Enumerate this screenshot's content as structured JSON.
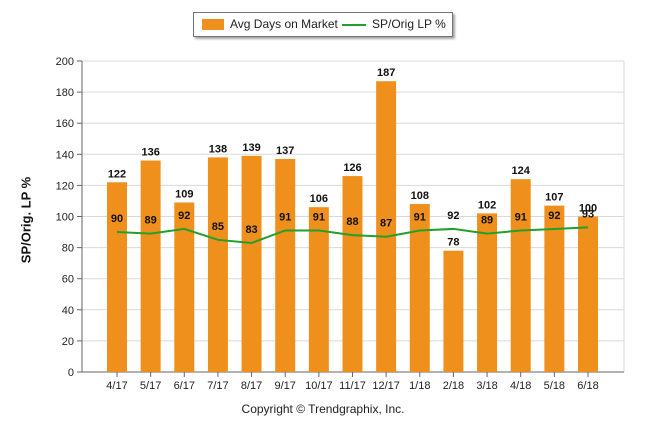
{
  "legend": {
    "bar_label": "Avg Days on Market",
    "line_label": "SP/Orig LP %"
  },
  "footer": "Copyright © Trendgraphix, Inc.",
  "colors": {
    "bar": "#f0901c",
    "line": "#22a02a",
    "grid": "#d9d9d9",
    "axis": "#666666"
  },
  "chart_data": {
    "type": "bar",
    "title": "",
    "xlabel": "",
    "ylabel": "SP/Orig. LP %",
    "ylim": [
      0,
      200
    ],
    "yticks": [
      0,
      20,
      40,
      60,
      80,
      100,
      120,
      140,
      160,
      180,
      200
    ],
    "grid": true,
    "legend_position": "top-center",
    "categories": [
      "4/17",
      "5/17",
      "6/17",
      "7/17",
      "8/17",
      "9/17",
      "10/17",
      "11/17",
      "12/17",
      "1/18",
      "2/18",
      "3/18",
      "4/18",
      "5/18",
      "6/18"
    ],
    "series": [
      {
        "name": "Avg Days on Market",
        "type": "bar",
        "values": [
          122,
          136,
          109,
          138,
          139,
          137,
          106,
          126,
          187,
          108,
          78,
          102,
          124,
          107,
          100
        ]
      },
      {
        "name": "SP/Orig LP %",
        "type": "line",
        "values": [
          90,
          89,
          92,
          85,
          83,
          91,
          91,
          88,
          87,
          91,
          92,
          89,
          91,
          92,
          93
        ]
      }
    ]
  }
}
